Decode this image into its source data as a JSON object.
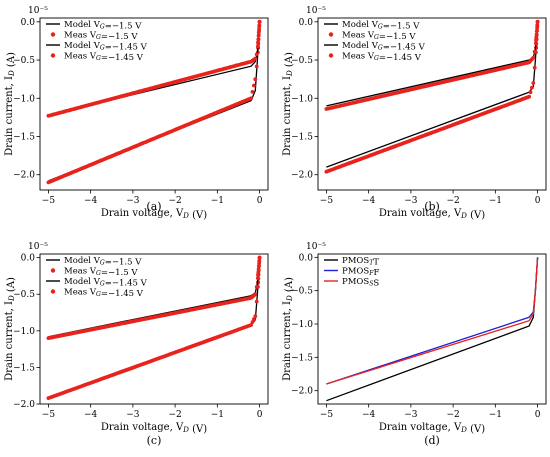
{
  "panels": [
    {
      "caption": "(a)",
      "exponent_label": "10⁻⁵",
      "xlabel": "Drain voltage, V_D (V)",
      "ylabel": "Drain current, I_D (A)",
      "xticks": [
        "−5",
        "−4",
        "−3",
        "−2",
        "−1",
        "0"
      ],
      "yticks": [
        "0.0",
        "−0.5",
        "−1.0",
        "−1.5",
        "−2.0"
      ],
      "legend": [
        "Model V_G=−1.5 V",
        "Meas V_G=−1.5 V",
        "Model V_G=−1.45 V",
        "Meas V_G=−1.45 V"
      ]
    },
    {
      "caption": "(b)",
      "exponent_label": "10⁻⁵",
      "xlabel": "Drain voltage, V_D (V)",
      "ylabel": "Drain current, I_D (A)",
      "xticks": [
        "−5",
        "−4",
        "−3",
        "−2",
        "−1",
        "0"
      ],
      "yticks": [
        "0.0",
        "−0.5",
        "−1.0",
        "−1.5",
        "−2.0"
      ],
      "legend": [
        "Model V_G=−1.5 V",
        "Meas V_G=−1.5 V",
        "Model V_G=−1.45 V",
        "Meas V_G=−1.45 V"
      ]
    },
    {
      "caption": "(c)",
      "exponent_label": "10⁻⁵",
      "xlabel": "Drain voltage, V_D (V)",
      "ylabel": "Drain current, I_D (A)",
      "xticks": [
        "−5",
        "−4",
        "−3",
        "−2",
        "−1",
        "0"
      ],
      "yticks": [
        "0.0",
        "−0.5",
        "−1.0",
        "−1.5",
        "−2.0"
      ],
      "legend": [
        "Model V_G=−1.5 V",
        "Meas V_G=−1.5 V",
        "Model V_G=−1.45 V",
        "Meas V_G=−1.45 V"
      ]
    },
    {
      "caption": "(d)",
      "exponent_label": "10⁻⁵",
      "xlabel": "Drain voltage, V_D (V)",
      "ylabel": "Drain current, I_D (A)",
      "xticks": [
        "−5",
        "−4",
        "−3",
        "−2",
        "−1",
        "0"
      ],
      "yticks": [
        "0.0",
        "−0.5",
        "−1.0",
        "−1.5",
        "−2.0"
      ],
      "legend": [
        "PMOS_TT",
        "PMOS_FF",
        "PMOS_SS"
      ]
    }
  ],
  "colors": {
    "model": "#000000",
    "meas": "#e8231c",
    "tt": "#000000",
    "ff": "#1f1fd6",
    "ss": "#e8231c"
  },
  "chart_data": [
    {
      "type": "line",
      "xlim": [
        -5.2,
        0.2
      ],
      "ylim": [
        -2.2,
        0.05
      ],
      "y_scale_exponent": -5,
      "series": [
        {
          "name": "Model V_G=−1.5 V",
          "style": "line",
          "color": "#000000",
          "x": [
            -5,
            -0.2,
            -0.1,
            -0.05,
            0
          ],
          "y": [
            -2.08,
            -1.03,
            -0.9,
            -0.5,
            0
          ]
        },
        {
          "name": "Meas V_G=−1.5 V",
          "style": "markers",
          "color": "#e8231c",
          "x": [
            -5,
            -0.2,
            -0.1,
            -0.05,
            0
          ],
          "y": [
            -2.1,
            -1.0,
            -0.75,
            -0.5,
            0
          ]
        },
        {
          "name": "Model V_G=−1.45 V",
          "style": "line",
          "color": "#000000",
          "x": [
            -5,
            -0.2,
            -0.1,
            -0.05,
            0
          ],
          "y": [
            -1.22,
            -0.58,
            -0.52,
            -0.4,
            0
          ]
        },
        {
          "name": "Meas V_G=−1.45 V",
          "style": "markers",
          "color": "#e8231c",
          "x": [
            -5,
            -0.2,
            -0.1,
            -0.05,
            0
          ],
          "y": [
            -1.23,
            -0.52,
            -0.48,
            -0.4,
            0
          ]
        }
      ]
    },
    {
      "type": "line",
      "xlim": [
        -5.2,
        0.2
      ],
      "ylim": [
        -2.2,
        0.05
      ],
      "y_scale_exponent": -5,
      "series": [
        {
          "name": "Model V_G=−1.5 V",
          "style": "line",
          "color": "#000000",
          "x": [
            -5,
            -0.2,
            -0.1,
            -0.05,
            0
          ],
          "y": [
            -1.9,
            -0.92,
            -0.85,
            -0.5,
            0
          ]
        },
        {
          "name": "Meas V_G=−1.5 V",
          "style": "markers",
          "color": "#e8231c",
          "x": [
            -5,
            -0.2,
            -0.1,
            -0.05,
            0
          ],
          "y": [
            -1.96,
            -0.98,
            -0.8,
            -0.5,
            0
          ]
        },
        {
          "name": "Model V_G=−1.45 V",
          "style": "line",
          "color": "#000000",
          "x": [
            -5,
            -0.2,
            -0.1,
            -0.05,
            0
          ],
          "y": [
            -1.1,
            -0.5,
            -0.47,
            -0.35,
            0
          ]
        },
        {
          "name": "Meas V_G=−1.45 V",
          "style": "markers",
          "color": "#e8231c",
          "x": [
            -5,
            -0.2,
            -0.1,
            -0.05,
            0
          ],
          "y": [
            -1.14,
            -0.53,
            -0.47,
            -0.35,
            0
          ]
        }
      ]
    },
    {
      "type": "line",
      "xlim": [
        -5.2,
        0.2
      ],
      "ylim": [
        -2.0,
        0.05
      ],
      "y_scale_exponent": -5,
      "series": [
        {
          "name": "Model V_G=−1.5 V",
          "style": "line",
          "color": "#000000",
          "x": [
            -5,
            -0.2,
            -0.1,
            -0.05,
            0
          ],
          "y": [
            -1.92,
            -0.92,
            -0.85,
            -0.5,
            0
          ]
        },
        {
          "name": "Meas V_G=−1.5 V",
          "style": "markers",
          "color": "#e8231c",
          "x": [
            -5,
            -0.2,
            -0.1,
            -0.05,
            0
          ],
          "y": [
            -1.92,
            -0.92,
            -0.8,
            -0.5,
            0
          ]
        },
        {
          "name": "Model V_G=−1.45 V",
          "style": "line",
          "color": "#000000",
          "x": [
            -5,
            -0.2,
            -0.1,
            -0.05,
            0
          ],
          "y": [
            -1.08,
            -0.52,
            -0.48,
            -0.35,
            0
          ]
        },
        {
          "name": "Meas V_G=−1.45 V",
          "style": "markers",
          "color": "#e8231c",
          "x": [
            -5,
            -0.2,
            -0.1,
            -0.05,
            0
          ],
          "y": [
            -1.1,
            -0.55,
            -0.5,
            -0.35,
            0
          ]
        }
      ]
    },
    {
      "type": "line",
      "xlim": [
        -5.2,
        0.2
      ],
      "ylim": [
        -2.2,
        0.05
      ],
      "y_scale_exponent": -5,
      "series": [
        {
          "name": "PMOS_TT",
          "style": "line",
          "color": "#000000",
          "x": [
            -5,
            -0.2,
            -0.1,
            -0.05,
            0
          ],
          "y": [
            -2.15,
            -1.03,
            -0.9,
            -0.5,
            0
          ]
        },
        {
          "name": "PMOS_FF",
          "style": "line",
          "color": "#1f1fd6",
          "x": [
            -5,
            -0.2,
            -0.1,
            -0.05,
            0
          ],
          "y": [
            -1.9,
            -0.9,
            -0.82,
            -0.5,
            0
          ]
        },
        {
          "name": "PMOS_SS",
          "style": "line",
          "color": "#e8231c",
          "x": [
            -5,
            -0.2,
            -0.1,
            -0.05,
            0
          ],
          "y": [
            -1.9,
            -0.95,
            -0.85,
            -0.5,
            0
          ]
        }
      ]
    }
  ]
}
